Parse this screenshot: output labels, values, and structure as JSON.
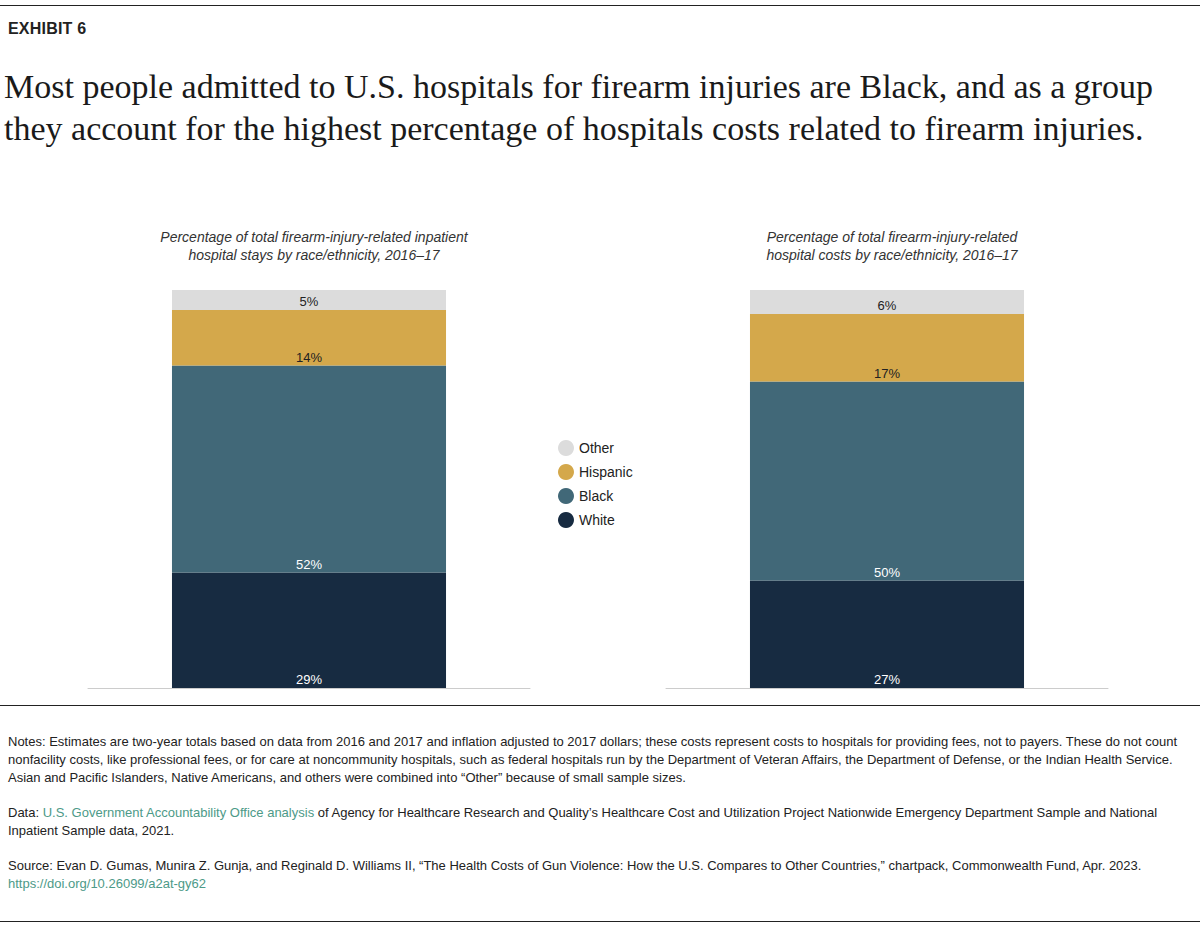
{
  "header": {
    "label": "EXHIBIT 6",
    "title": "Most people admitted to U.S. hospitals for firearm injuries are Black, and as a group they account for the highest percentage of hospitals costs related to firearm injuries."
  },
  "chart_data": [
    {
      "type": "bar",
      "stacked": true,
      "data_labels": true,
      "tick_labels": false,
      "grid": false,
      "legend": "right",
      "subtitle": "Percentage of total firearm-injury-related inpatient\nhospital stays by race/ethnicity, 2016–17",
      "categories": [
        null
      ],
      "ylim": [
        0,
        100
      ],
      "series": [
        {
          "name": "White",
          "color": "#172b41",
          "values": [
            29
          ],
          "value_labels": [
            "29%"
          ]
        },
        {
          "name": "Black",
          "color": "#416878",
          "values": [
            52
          ],
          "value_labels": [
            "52%"
          ]
        },
        {
          "name": "Hispanic",
          "color": "#d4a84b",
          "values": [
            14
          ],
          "value_labels": [
            "14%"
          ]
        },
        {
          "name": "Other",
          "color": "#dcdcdc",
          "values": [
            5
          ],
          "value_labels": [
            "5%"
          ]
        }
      ]
    },
    {
      "type": "bar",
      "stacked": true,
      "data_labels": true,
      "tick_labels": false,
      "grid": false,
      "subtitle": "Percentage of total firearm-injury-related\nhospital costs by race/ethnicity, 2016–17",
      "categories": [
        null
      ],
      "ylim": [
        0,
        100
      ],
      "series": [
        {
          "name": "White",
          "color": "#172b41",
          "values": [
            27
          ],
          "value_labels": [
            "27%"
          ]
        },
        {
          "name": "Black",
          "color": "#416878",
          "values": [
            50
          ],
          "value_labels": [
            "50%"
          ]
        },
        {
          "name": "Hispanic",
          "color": "#d4a84b",
          "values": [
            17
          ],
          "value_labels": [
            "17%"
          ]
        },
        {
          "name": "Other",
          "color": "#dcdcdc",
          "values": [
            6
          ],
          "value_labels": [
            "6%"
          ]
        }
      ]
    }
  ],
  "footer": {
    "notes": "Notes: Estimates are two-year totals based on data from 2016 and 2017 and inflation adjusted to 2017 dollars; these costs represent costs to hospitals for providing fees, not to payers. These do not count nonfacility costs, like professional fees, or for care at noncommunity hospitals, such as federal hospitals run by the Department of Veteran Affairs, the Department of Defense, or the Indian Health Service. Asian and Pacific Islanders, Native Americans, and others were combined into “Other” because of small sample sizes.",
    "data": {
      "label": "Data:",
      "link": "U.S. Government Accountability Office analysis",
      "text": "of Agency for Healthcare Research and Quality’s Healthcare Cost and Utilization Project Nationwide Emergency Department Sample and National Inpatient Sample data, 2021."
    },
    "source": {
      "text": "Source: Evan D. Gumas, Munira Z. Gunja, and Reginald D. Williams II, “The Health Costs of Gun Violence: How the U.S. Compares to Other Countries,” chartpack, Commonwealth Fund, Apr. 2023.",
      "link": "https://doi.org/10.26099/a2at-gy62"
    }
  }
}
